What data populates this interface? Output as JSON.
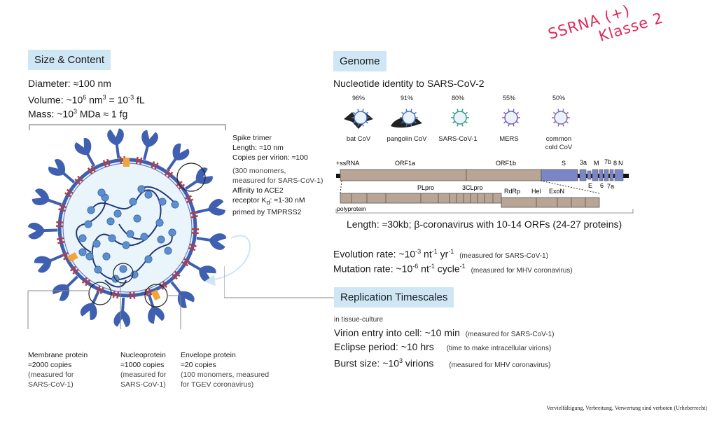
{
  "size_content": {
    "title": "Size & Content",
    "diameter": "Diameter: ≈100 nm",
    "volume_prefix": "Volume: ~10",
    "volume_exp": "6",
    "volume_mid": " nm",
    "volume_exp2": "3",
    "volume_eq": " = 10",
    "volume_exp3": "-3",
    "volume_unit": " fL",
    "mass_prefix": "Mass: ~10",
    "mass_exp": "3",
    "mass_unit": " MDa ≈ 1 fg"
  },
  "spike": {
    "line1": "Spike trimer",
    "line2": "Length: ≈10 nm",
    "line3": "Copies per virion: ≈100",
    "line4": "(300 monomers,",
    "line5": "measured for SARS-CoV-1)",
    "line6": "Affinity to ACE2",
    "line7_prefix": "receptor K",
    "line7_sub": "d",
    "line7_suffix": ": ≈1-30 nM",
    "line8": "primed by TMPRSS2"
  },
  "membrane": {
    "title": "Membrane protein",
    "copies": "≈2000 copies",
    "note1": "(measured for",
    "note2": "SARS-CoV-1)"
  },
  "nucleoprotein": {
    "title": "Nucleoprotein",
    "copies": "≈1000 copies",
    "note1": "(measured for",
    "note2": "SARS-CoV-1)"
  },
  "envelope": {
    "title": "Envelope protein",
    "copies": "≈20 copies",
    "note1": "(100 monomers, measured",
    "note2": "for TGEV coronavirus)"
  },
  "genome": {
    "title": "Genome",
    "identity_title": "Nucleotide identity to SARS-CoV-2",
    "viruses": [
      {
        "pct": "96%",
        "name": "bat CoV",
        "name2": ""
      },
      {
        "pct": "91%",
        "name": "pangolin CoV",
        "name2": ""
      },
      {
        "pct": "80%",
        "name": "SARS-CoV-1",
        "name2": ""
      },
      {
        "pct": "55%",
        "name": "MERS",
        "name2": ""
      },
      {
        "pct": "50%",
        "name": "common",
        "name2": "cold CoV"
      }
    ],
    "map": {
      "ssrna": "+ssRNA",
      "orf1a": "ORF1a",
      "orf1b": "ORF1b",
      "s": "S",
      "g3a": "3a",
      "m": "M",
      "g7b": "7b",
      "g8": "8",
      "n": "N",
      "e": "E",
      "g6": "6",
      "g7a": "7a",
      "plpro": "PLpro",
      "clpro": "3CLpro",
      "rdrp": "RdRp",
      "hel": "Hel",
      "exon": "ExoN",
      "polyprotein": "polyprotein"
    },
    "length": "Length: ≈30kb; β-coronavirus with 10-14 ORFs (24-27 proteins)",
    "evolution_prefix": "Evolution rate: ~10",
    "evolution_exp1": "-3",
    "evolution_mid": " nt",
    "evolution_exp2": "-1",
    "evolution_mid2": " yr",
    "evolution_exp3": "-1",
    "evolution_note": "(measured for SARS-CoV-1)",
    "mutation_prefix": "Mutation rate: ~10",
    "mutation_exp1": "-6",
    "mutation_mid": " nt",
    "mutation_exp2": "-1",
    "mutation_mid2": " cycle",
    "mutation_exp3": "-1",
    "mutation_note": "(measured for MHV coronavirus)"
  },
  "replication": {
    "title": "Replication Timescales",
    "context": "in tissue-culture",
    "entry": "Virion entry into cell: ~10 min",
    "entry_note": "(measured for SARS-CoV-1)",
    "eclipse": "Eclipse period: ~10 hrs",
    "eclipse_note": "(time to make intracellular virions)",
    "burst_prefix": "Burst size: ~10",
    "burst_exp": "3",
    "burst_suffix": " virions",
    "burst_note": "(measured for MHV coronavirus)"
  },
  "annotation": {
    "line1": "SSRNA (+)",
    "line2": "Klasse 2"
  },
  "footer": "Vervielfältigung, Verbreitung, Verwertung sind verboten (Urheberrecht)",
  "colors": {
    "title_bg": "#cfe6f4",
    "spike": "#3f5fb0",
    "membrane": "#c0393b",
    "envelope": "#f0a43a",
    "genome_bar": "#b8a595",
    "s_gene": "#7a86c8",
    "handwriting": "#e0295a"
  }
}
